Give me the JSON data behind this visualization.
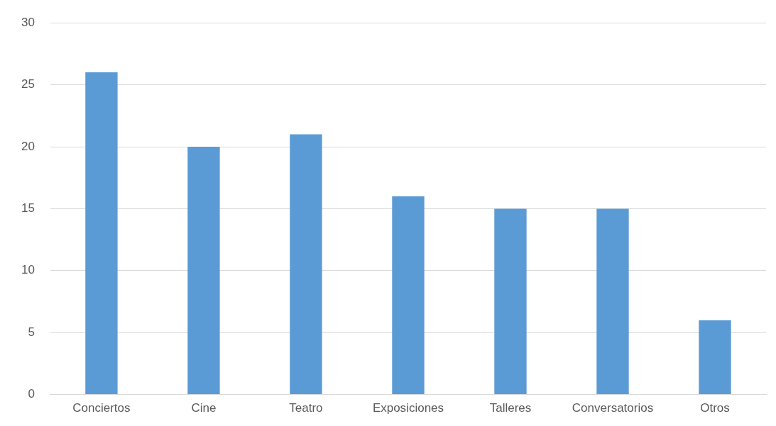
{
  "chart_data": {
    "type": "bar",
    "categories": [
      "Conciertos",
      "Cine",
      "Teatro",
      "Exposiciones",
      "Talleres",
      "Conversatorios",
      "Otros"
    ],
    "values": [
      26,
      20,
      21,
      16,
      15,
      15,
      6
    ],
    "color": "#5b9bd5",
    "ylim": [
      0,
      30
    ],
    "yticks": [
      0,
      5,
      10,
      15,
      20,
      25,
      30
    ],
    "grid": "y"
  }
}
